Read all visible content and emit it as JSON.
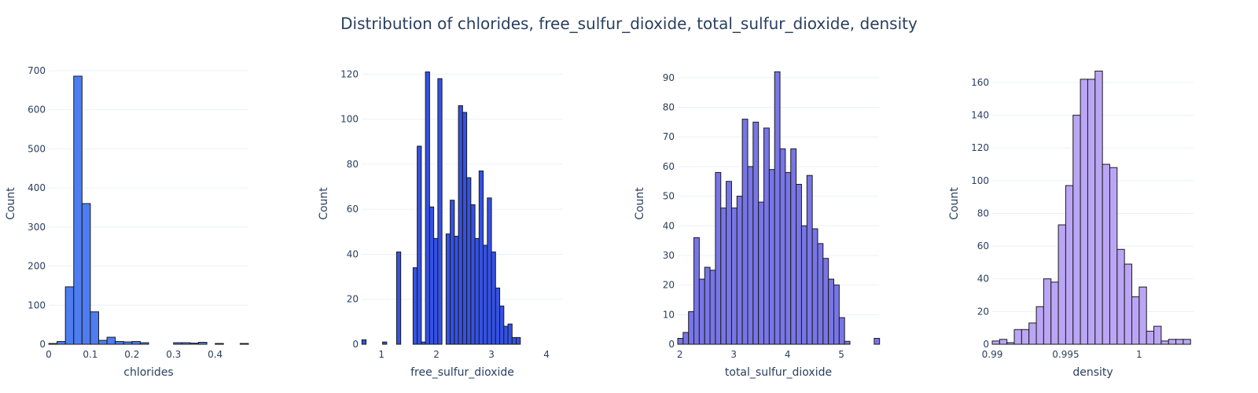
{
  "title": "Distribution of chlorides, free_sulfur_dioxide, total_sulfur_dioxide, density",
  "chart_data": [
    {
      "type": "bar",
      "xlabel": "chlorides",
      "ylabel": "Count",
      "color": "#4d7df0",
      "xlim": [
        0,
        0.48
      ],
      "ylim": [
        0,
        720
      ],
      "xticks": [
        0,
        0.1,
        0.2,
        0.3,
        0.4
      ],
      "xtick_labels": [
        "0",
        "0.1",
        "0.2",
        "0.3",
        "0.4"
      ],
      "yticks": [
        0,
        100,
        200,
        300,
        400,
        500,
        600,
        700
      ],
      "grid": true,
      "bin_width": 0.02,
      "x": [
        0.01,
        0.03,
        0.05,
        0.07,
        0.09,
        0.11,
        0.13,
        0.15,
        0.17,
        0.19,
        0.21,
        0.23,
        0.25,
        0.27,
        0.29,
        0.31,
        0.33,
        0.35,
        0.37,
        0.39,
        0.41,
        0.43,
        0.45,
        0.47
      ],
      "values": [
        2,
        7,
        147,
        686,
        360,
        83,
        10,
        18,
        7,
        6,
        7,
        4,
        0,
        0,
        0,
        4,
        4,
        3,
        5,
        0,
        2,
        0,
        0,
        2
      ]
    },
    {
      "type": "bar",
      "xlabel": "free_sulfur_dioxide",
      "ylabel": "Count",
      "color": "#3451e6",
      "xlim": [
        0.64,
        4.3
      ],
      "ylim": [
        0,
        125
      ],
      "xticks": [
        1,
        2,
        3,
        4
      ],
      "xtick_labels": [
        "1",
        "2",
        "3",
        "4"
      ],
      "yticks": [
        0,
        20,
        40,
        60,
        80,
        100,
        120
      ],
      "grid": true,
      "bin_width": 0.075,
      "x": [
        0.6825,
        1.0575,
        1.3125,
        1.6125,
        1.6875,
        1.7625,
        1.8375,
        1.9125,
        1.9875,
        2.0625,
        2.2125,
        2.2875,
        2.3625,
        2.4375,
        2.5125,
        2.5875,
        2.6625,
        2.7375,
        2.8125,
        2.8875,
        2.9625,
        3.0375,
        3.1125,
        3.1875,
        3.2625,
        3.3375,
        3.4125,
        3.4875,
        3.5625,
        3.6375,
        3.7125,
        3.7875,
        3.8625,
        4.2375
      ],
      "values": [
        2,
        1,
        41,
        34,
        88,
        1,
        121,
        61,
        47,
        118,
        49,
        64,
        48,
        106,
        103,
        74,
        62,
        47,
        77,
        44,
        65,
        41,
        25,
        17,
        8,
        9,
        3,
        3,
        0,
        0,
        0,
        0,
        0,
        0
      ]
    },
    {
      "type": "bar",
      "xlabel": "total_sulfur_dioxide",
      "ylabel": "Count",
      "color": "#7876e6",
      "xlim": [
        1.96,
        5.7
      ],
      "ylim": [
        0,
        95
      ],
      "xticks": [
        2,
        3,
        4,
        5
      ],
      "xtick_labels": [
        "2",
        "3",
        "4",
        "5"
      ],
      "yticks": [
        0,
        10,
        20,
        30,
        40,
        50,
        60,
        70,
        80,
        90
      ],
      "grid": true,
      "bin_width": 0.1,
      "x": [
        2.01,
        2.11,
        2.21,
        2.31,
        2.41,
        2.51,
        2.61,
        2.71,
        2.81,
        2.91,
        3.01,
        3.11,
        3.21,
        3.31,
        3.41,
        3.51,
        3.61,
        3.71,
        3.81,
        3.91,
        4.01,
        4.11,
        4.21,
        4.31,
        4.41,
        4.51,
        4.61,
        4.71,
        4.81,
        4.91,
        5.01,
        5.11,
        5.21,
        5.31,
        5.41,
        5.51,
        5.66
      ],
      "values": [
        2,
        4,
        11,
        36,
        22,
        26,
        25,
        58,
        46,
        55,
        46,
        50,
        76,
        60,
        75,
        48,
        73,
        59,
        92,
        66,
        58,
        66,
        54,
        40,
        57,
        39,
        34,
        29,
        22,
        20,
        9,
        1,
        0,
        0,
        0,
        0,
        2
      ]
    },
    {
      "type": "bar",
      "xlabel": "density",
      "ylabel": "Count",
      "color": "#bba6f5",
      "xlim": [
        0.99,
        1.0037
      ],
      "ylim": [
        0,
        172
      ],
      "xticks": [
        0.99,
        0.995,
        1
      ],
      "xtick_labels": [
        "0.99",
        "0.995",
        "1"
      ],
      "yticks": [
        0,
        20,
        40,
        60,
        80,
        100,
        120,
        140,
        160
      ],
      "grid": true,
      "bin_width": 0.0005,
      "x": [
        0.99025,
        0.99075,
        0.99125,
        0.99175,
        0.99225,
        0.99275,
        0.99325,
        0.99375,
        0.99425,
        0.99475,
        0.99525,
        0.99575,
        0.99625,
        0.99675,
        0.99725,
        0.99775,
        0.99825,
        0.99875,
        0.99925,
        0.99975,
        1.00025,
        1.00075,
        1.00125,
        1.00175,
        1.00225,
        1.00275,
        1.00325
      ],
      "values": [
        2,
        3,
        1,
        9,
        9,
        13,
        23,
        40,
        38,
        73,
        97,
        140,
        162,
        162,
        167,
        110,
        108,
        58,
        49,
        29,
        35,
        8,
        11,
        2,
        3,
        3,
        3
      ]
    }
  ]
}
